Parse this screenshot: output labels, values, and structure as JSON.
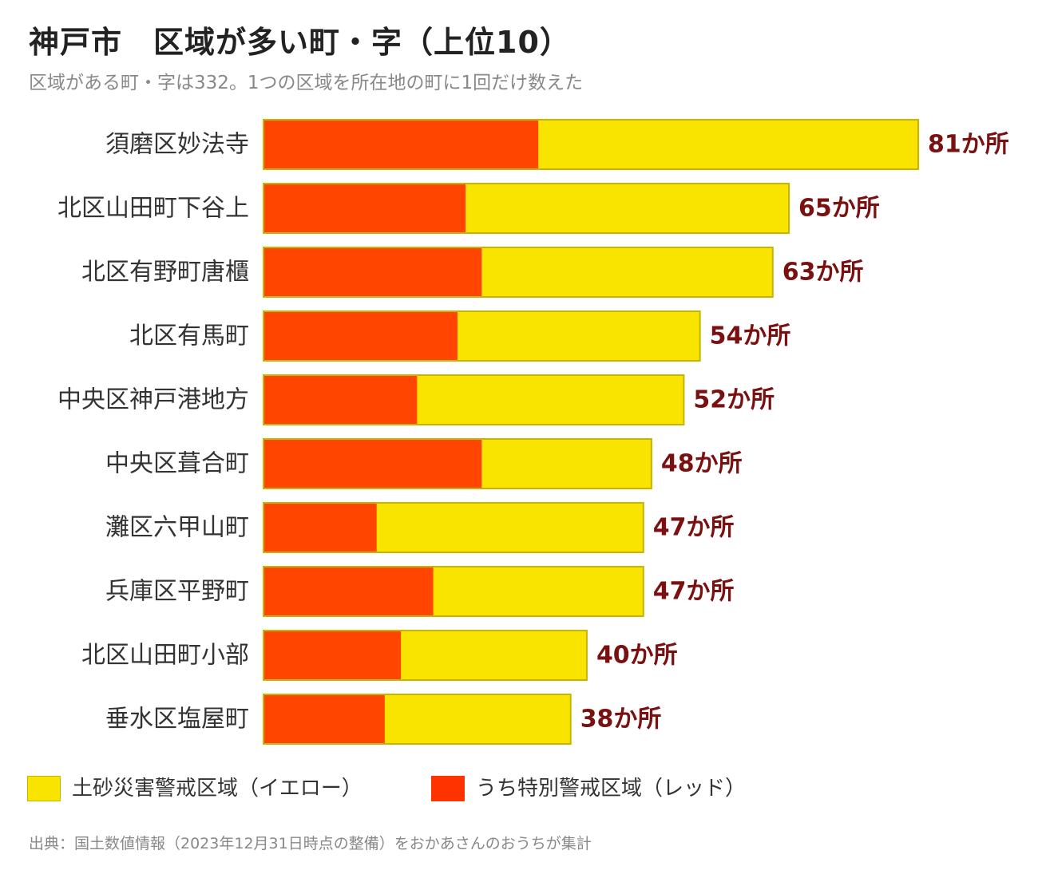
{
  "title": "神戸市　区域が多い町・字（上位10）",
  "subtitle": "区域がある町・字は332。1つの区域を所在地の町に1回だけ数えた",
  "source": "出典：国土数値情報（2023年12月31日時点の整備）をおかあさんのおうちが集計",
  "colors": {
    "yellow": "#F9E400",
    "yellow_border": "#C8B400",
    "red": "#FF4500",
    "value_label": "#7A1010"
  },
  "legend": [
    {
      "label": "土砂災害警戒区域（イエロー）",
      "color": "#F9E400"
    },
    {
      "label": "うち特別警戒区域（レッド）",
      "color": "#FF3300"
    }
  ],
  "chart_data": {
    "type": "bar",
    "orientation": "horizontal",
    "stacked": "overlay",
    "categories": [
      "須磨区妙法寺",
      "北区山田町下谷上",
      "北区有野町唐櫃",
      "北区有馬町",
      "中央区神戸港地方",
      "中央区葺合町",
      "灘区六甲山町",
      "兵庫区平野町",
      "北区山田町小部",
      "垂水区塩屋町"
    ],
    "series": [
      {
        "name": "土砂災害警戒区域（イエロー）",
        "values": [
          81,
          65,
          63,
          54,
          52,
          48,
          47,
          47,
          40,
          38
        ]
      },
      {
        "name": "うち特別警戒区域（レッド）",
        "values": [
          34,
          25,
          27,
          24,
          19,
          27,
          14,
          21,
          17,
          15
        ]
      }
    ],
    "value_labels": [
      "81か所",
      "65か所",
      "63か所",
      "54か所",
      "52か所",
      "48か所",
      "47か所",
      "47か所",
      "40か所",
      "38か所"
    ],
    "xlim": [
      0,
      81
    ],
    "grid": false,
    "legend_position": "bottom-left"
  }
}
